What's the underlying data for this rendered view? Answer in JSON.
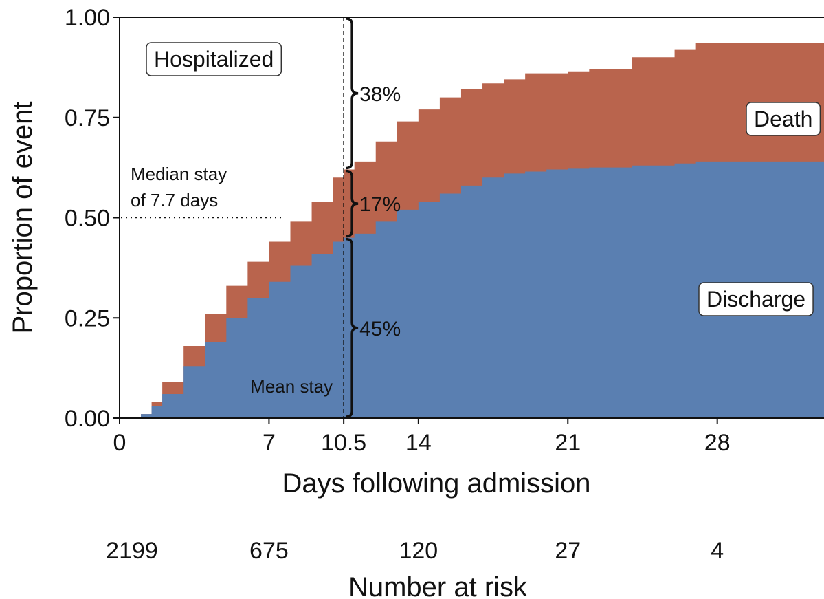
{
  "chart_data": {
    "type": "area",
    "stacked": true,
    "xlabel": "Days following admission",
    "ylabel": "Proportion of event",
    "xlim": [
      0,
      33
    ],
    "ylim": [
      0,
      1
    ],
    "x_ticks": [
      0,
      7,
      10.5,
      14,
      21,
      28
    ],
    "x_tick_labels": [
      "0",
      "7",
      "10.5",
      "14",
      "21",
      "28"
    ],
    "y_ticks": [
      0,
      0.25,
      0.5,
      0.75,
      1
    ],
    "y_tick_labels": [
      "0.00",
      "0.25",
      "0.50",
      "0.75",
      "1.00"
    ],
    "colors": {
      "discharge": "#5a7fb1",
      "death": "#b9644d",
      "axis": "#111111"
    },
    "series": [
      {
        "name": "Discharge",
        "color": "#5a7fb1",
        "points": [
          [
            0,
            0
          ],
          [
            0.5,
            0
          ],
          [
            1,
            0.01
          ],
          [
            1.5,
            0.03
          ],
          [
            2,
            0.06
          ],
          [
            3,
            0.13
          ],
          [
            4,
            0.19
          ],
          [
            5,
            0.25
          ],
          [
            6,
            0.3
          ],
          [
            7,
            0.34
          ],
          [
            8,
            0.38
          ],
          [
            9,
            0.41
          ],
          [
            10,
            0.44
          ],
          [
            10.5,
            0.45
          ],
          [
            11,
            0.46
          ],
          [
            12,
            0.49
          ],
          [
            13,
            0.52
          ],
          [
            14,
            0.54
          ],
          [
            15,
            0.56
          ],
          [
            16,
            0.58
          ],
          [
            17,
            0.6
          ],
          [
            18,
            0.61
          ],
          [
            19,
            0.615
          ],
          [
            20,
            0.62
          ],
          [
            21,
            0.622
          ],
          [
            22,
            0.625
          ],
          [
            24,
            0.63
          ],
          [
            26,
            0.635
          ],
          [
            27,
            0.64
          ],
          [
            29,
            0.64
          ],
          [
            31,
            0.64
          ],
          [
            33,
            0.64
          ]
        ]
      },
      {
        "name": "Death",
        "color": "#b9644d",
        "points": [
          [
            0,
            0
          ],
          [
            0.5,
            0
          ],
          [
            1,
            0.01
          ],
          [
            1.5,
            0.04
          ],
          [
            2,
            0.09
          ],
          [
            3,
            0.18
          ],
          [
            4,
            0.26
          ],
          [
            5,
            0.33
          ],
          [
            6,
            0.39
          ],
          [
            7,
            0.44
          ],
          [
            8,
            0.49
          ],
          [
            9,
            0.54
          ],
          [
            10,
            0.6
          ],
          [
            10.5,
            0.62
          ],
          [
            11,
            0.64
          ],
          [
            12,
            0.69
          ],
          [
            13,
            0.74
          ],
          [
            14,
            0.77
          ],
          [
            15,
            0.8
          ],
          [
            16,
            0.82
          ],
          [
            17,
            0.835
          ],
          [
            18,
            0.845
          ],
          [
            19,
            0.86
          ],
          [
            20,
            0.86
          ],
          [
            21,
            0.865
          ],
          [
            22,
            0.87
          ],
          [
            24,
            0.9
          ],
          [
            26,
            0.92
          ],
          [
            27,
            0.935
          ],
          [
            29,
            0.935
          ],
          [
            31,
            0.935
          ],
          [
            33,
            1.0
          ]
        ]
      }
    ],
    "mean_stay_x": 10.5,
    "median_stay_y": 0.5,
    "median_stay_end_x": 7.7,
    "braces": [
      {
        "from": 0,
        "to": 0.45,
        "label": "45%"
      },
      {
        "from": 0.45,
        "to": 0.62,
        "label": "17%"
      },
      {
        "from": 0.62,
        "to": 1.0,
        "label": "38%"
      }
    ],
    "region_labels": {
      "hospitalized": "Hospitalized",
      "death": "Death",
      "discharge": "Discharge"
    },
    "annotations": {
      "median_line1": "Median stay",
      "median_line2": "of 7.7 days",
      "mean_stay": "Mean stay"
    },
    "risk_table": {
      "title": "Number at risk",
      "x": [
        0,
        7,
        14,
        21,
        28
      ],
      "values": [
        "2199",
        "675",
        "120",
        "27",
        "4"
      ]
    }
  }
}
